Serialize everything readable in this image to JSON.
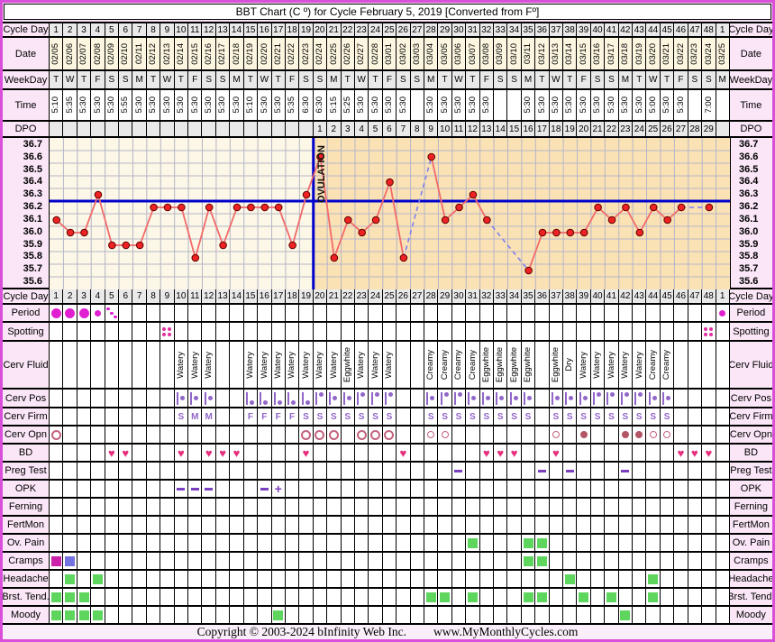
{
  "title": "BBT Chart (C º) for Cycle February 5, 2019  [Converted from Fº]",
  "footer": {
    "copyright": "Copyright © 2003-2024 bInfinity Web Inc.",
    "site": "www.MyMonthlyCycles.com"
  },
  "row_labels": {
    "cycle_day": "Cycle Day",
    "date": "Date",
    "weekday": "WeekDay",
    "time": "Time",
    "dpo": "DPO",
    "period": "Period",
    "spotting": "Spotting",
    "cerv_fluid": "Cerv Fluid",
    "cerv_pos": "Cerv Pos",
    "cerv_firm": "Cerv Firm",
    "cerv_opn": "Cerv Opn",
    "bd": "BD",
    "preg_test": "Preg Test",
    "opk": "OPK",
    "ferning": "Ferning",
    "fertmon": "FertMon",
    "ov_pain": "Ov. Pain",
    "cramps": "Cramps",
    "headache": "Headache",
    "brst_tend": "Brst. Tend.",
    "moody": "Moody"
  },
  "columns": {
    "cycle_days": [
      "1",
      "2",
      "3",
      "4",
      "5",
      "6",
      "7",
      "8",
      "9",
      "10",
      "11",
      "12",
      "13",
      "14",
      "15",
      "16",
      "17",
      "18",
      "19",
      "20",
      "21",
      "22",
      "23",
      "24",
      "25",
      "26",
      "27",
      "28",
      "29",
      "30",
      "31",
      "32",
      "33",
      "34",
      "35",
      "36",
      "37",
      "38",
      "39",
      "40",
      "41",
      "42",
      "43",
      "44",
      "45",
      "46",
      "47",
      "48",
      "1"
    ],
    "dates": [
      "02/05",
      "02/06",
      "02/07",
      "02/08",
      "02/09",
      "02/10",
      "02/11",
      "02/12",
      "02/13",
      "02/14",
      "02/15",
      "02/16",
      "02/17",
      "02/18",
      "02/19",
      "02/20",
      "02/21",
      "02/22",
      "02/23",
      "02/24",
      "02/25",
      "02/26",
      "02/27",
      "02/28",
      "03/01",
      "03/02",
      "03/03",
      "03/04",
      "03/05",
      "03/06",
      "03/07",
      "03/08",
      "03/09",
      "03/10",
      "03/11",
      "03/12",
      "03/13",
      "03/14",
      "03/15",
      "03/16",
      "03/17",
      "03/18",
      "03/19",
      "03/20",
      "03/21",
      "03/22",
      "03/23",
      "03/24",
      "03/25"
    ],
    "weekdays": [
      "T",
      "W",
      "T",
      "F",
      "S",
      "S",
      "M",
      "T",
      "W",
      "T",
      "F",
      "S",
      "S",
      "M",
      "T",
      "W",
      "T",
      "F",
      "S",
      "S",
      "M",
      "T",
      "W",
      "T",
      "F",
      "S",
      "S",
      "M",
      "T",
      "W",
      "T",
      "F",
      "S",
      "S",
      "M",
      "T",
      "W",
      "T",
      "F",
      "S",
      "S",
      "M",
      "T",
      "W",
      "T",
      "F",
      "S",
      "S",
      "M"
    ],
    "times": [
      "5:10",
      "5:35",
      "5:30",
      "5:30",
      "5:30",
      "5:55",
      "5:30",
      "5:30",
      "5:30",
      "5:30",
      "5:30",
      "5:30",
      "5:30",
      "5:30",
      "5:10",
      "5:30",
      "5:30",
      "5:35",
      "6:30",
      "6:30",
      "5:15",
      "5:25",
      "5:30",
      "5:30",
      "5:30",
      "5:30",
      "",
      "5:30",
      "5:30",
      "5:30",
      "5:30",
      "5:30",
      "",
      "",
      "5:30",
      "5:30",
      "5:30",
      "5:30",
      "5:30",
      "5:30",
      "5:30",
      "5:30",
      "5:30",
      "5:00",
      "5:30",
      "5:30",
      "",
      "7:00",
      ""
    ],
    "dpo": [
      "",
      "",
      "",
      "",
      "",
      "",
      "",
      "",
      "",
      "",
      "",
      "",
      "",
      "",
      "",
      "",
      "",
      "",
      "",
      "1",
      "2",
      "3",
      "4",
      "5",
      "6",
      "7",
      "8",
      "9",
      "10",
      "11",
      "12",
      "13",
      "14",
      "15",
      "16",
      "17",
      "18",
      "19",
      "20",
      "21",
      "22",
      "23",
      "24",
      "25",
      "26",
      "27",
      "28",
      "29",
      ""
    ]
  },
  "chart_data": {
    "type": "line",
    "title": "Basal body temperature by cycle day (°C)",
    "x_note": "x = cycle days 1-48 plus day 1 of next cycle (see columns.cycle_days)",
    "y_ticks": [
      36.7,
      36.6,
      36.5,
      36.4,
      36.3,
      36.2,
      36.1,
      36.0,
      35.9,
      35.8,
      35.7,
      35.6
    ],
    "ylim": [
      35.6,
      36.7
    ],
    "temps_c": [
      36.1,
      36.0,
      36.0,
      36.3,
      35.9,
      35.9,
      35.9,
      36.2,
      36.2,
      36.2,
      35.8,
      36.2,
      35.9,
      36.2,
      36.2,
      36.2,
      36.2,
      35.9,
      36.3,
      36.6,
      35.8,
      36.1,
      36.0,
      36.1,
      36.4,
      35.8,
      null,
      36.6,
      36.1,
      36.2,
      36.3,
      36.1,
      null,
      null,
      35.7,
      36.0,
      36.0,
      36.0,
      36.0,
      36.2,
      36.1,
      36.2,
      36.0,
      36.2,
      36.1,
      36.2,
      null,
      36.2,
      null
    ],
    "coverline": 36.25,
    "ovulation_after_day": 19,
    "annotation": "OVULATION",
    "grid": true,
    "missing_data_style": "dashed blue line between surrounding points"
  },
  "observations": {
    "period": [
      [
        1,
        "heavy"
      ],
      [
        2,
        "heavy"
      ],
      [
        3,
        "heavy"
      ],
      [
        4,
        "light"
      ],
      [
        5,
        "spotting"
      ],
      [
        49,
        "light"
      ]
    ],
    "spotting": [
      [
        9,
        "spotting"
      ],
      [
        48,
        "spotting"
      ]
    ],
    "cerv_fluid": [
      [
        10,
        "Watery"
      ],
      [
        11,
        "Watery"
      ],
      [
        12,
        "Watery"
      ],
      [
        15,
        "Watery"
      ],
      [
        16,
        "Watery"
      ],
      [
        17,
        "Watery"
      ],
      [
        18,
        "Watery"
      ],
      [
        19,
        "Watery"
      ],
      [
        20,
        "Watery"
      ],
      [
        21,
        "Watery"
      ],
      [
        22,
        "Eggwhite"
      ],
      [
        23,
        "Watery"
      ],
      [
        24,
        "Watery"
      ],
      [
        25,
        "Watery"
      ],
      [
        28,
        "Creamy"
      ],
      [
        29,
        "Creamy"
      ],
      [
        30,
        "Creamy"
      ],
      [
        31,
        "Creamy"
      ],
      [
        32,
        "Eggwhite"
      ],
      [
        33,
        "Eggwhite"
      ],
      [
        34,
        "Eggwhite"
      ],
      [
        35,
        "Eggwhite"
      ],
      [
        37,
        "Eggwhite"
      ],
      [
        38,
        "Dry"
      ],
      [
        39,
        "Watery"
      ],
      [
        40,
        "Watery"
      ],
      [
        41,
        "Watery"
      ],
      [
        42,
        "Watery"
      ],
      [
        43,
        "Watery"
      ],
      [
        44,
        "Creamy"
      ],
      [
        45,
        "Creamy"
      ]
    ],
    "cerv_pos": [
      [
        10,
        "mid"
      ],
      [
        11,
        "mid"
      ],
      [
        12,
        "mid"
      ],
      [
        15,
        "low"
      ],
      [
        16,
        "low"
      ],
      [
        17,
        "low"
      ],
      [
        18,
        "low"
      ],
      [
        19,
        "low"
      ],
      [
        20,
        "high"
      ],
      [
        21,
        "mid"
      ],
      [
        22,
        "mid"
      ],
      [
        23,
        "high"
      ],
      [
        24,
        "high"
      ],
      [
        25,
        "high"
      ],
      [
        28,
        "mid"
      ],
      [
        29,
        "high"
      ],
      [
        30,
        "high"
      ],
      [
        31,
        "mid"
      ],
      [
        32,
        "mid"
      ],
      [
        33,
        "mid"
      ],
      [
        34,
        "mid"
      ],
      [
        35,
        "mid"
      ],
      [
        37,
        "mid"
      ],
      [
        38,
        "mid"
      ],
      [
        39,
        "mid"
      ],
      [
        40,
        "high"
      ],
      [
        41,
        "high"
      ],
      [
        42,
        "high"
      ],
      [
        43,
        "high"
      ],
      [
        44,
        "mid"
      ],
      [
        45,
        "mid"
      ]
    ],
    "cerv_firm": [
      [
        10,
        "S"
      ],
      [
        11,
        "M"
      ],
      [
        12,
        "M"
      ],
      [
        15,
        "F"
      ],
      [
        16,
        "F"
      ],
      [
        17,
        "F"
      ],
      [
        18,
        "F"
      ],
      [
        19,
        "S"
      ],
      [
        20,
        "S"
      ],
      [
        21,
        "S"
      ],
      [
        22,
        "S"
      ],
      [
        23,
        "S"
      ],
      [
        24,
        "S"
      ],
      [
        25,
        "S"
      ],
      [
        28,
        "S"
      ],
      [
        29,
        "S"
      ],
      [
        30,
        "S"
      ],
      [
        31,
        "S"
      ],
      [
        32,
        "S"
      ],
      [
        33,
        "S"
      ],
      [
        34,
        "S"
      ],
      [
        35,
        "S"
      ],
      [
        37,
        "S"
      ],
      [
        38,
        "S"
      ],
      [
        39,
        "S"
      ],
      [
        40,
        "S"
      ],
      [
        41,
        "S"
      ],
      [
        42,
        "S"
      ],
      [
        43,
        "S"
      ],
      [
        44,
        "S"
      ],
      [
        45,
        "S"
      ]
    ],
    "cerv_opn": [
      [
        1,
        "open"
      ],
      [
        19,
        "open"
      ],
      [
        20,
        "open"
      ],
      [
        21,
        "open"
      ],
      [
        23,
        "open"
      ],
      [
        24,
        "open"
      ],
      [
        25,
        "open"
      ],
      [
        28,
        "slight"
      ],
      [
        29,
        "slight"
      ],
      [
        37,
        "slight"
      ],
      [
        39,
        "closed"
      ],
      [
        42,
        "closed"
      ],
      [
        43,
        "closed"
      ],
      [
        44,
        "slight"
      ],
      [
        45,
        "slight"
      ]
    ],
    "bd": [
      5,
      6,
      10,
      12,
      13,
      14,
      19,
      26,
      32,
      33,
      34,
      37,
      46,
      47,
      48
    ],
    "preg_test": [
      [
        30,
        "negative"
      ],
      [
        36,
        "negative"
      ],
      [
        38,
        "negative"
      ],
      [
        42,
        "negative"
      ]
    ],
    "opk": [
      [
        10,
        "negative"
      ],
      [
        11,
        "negative"
      ],
      [
        12,
        "negative"
      ],
      [
        16,
        "negative"
      ],
      [
        17,
        "positive"
      ]
    ],
    "ferning": [],
    "fertmon": [],
    "ov_pain": [
      31,
      35,
      36
    ],
    "cramps": [
      [
        1,
        "magenta"
      ],
      [
        2,
        "periwinkle"
      ],
      [
        35,
        "green"
      ],
      [
        36,
        "green"
      ]
    ],
    "headache": [
      2,
      4,
      38,
      44
    ],
    "brst_tend": [
      1,
      2,
      3,
      28,
      29,
      31,
      35,
      36,
      39,
      41,
      44
    ],
    "moody": [
      1,
      2,
      3,
      4,
      17,
      42
    ]
  },
  "colors": {
    "frame": "#d94fd9",
    "label_bg": "#fae6f7",
    "grey_bg": "#e9e9e9",
    "cream_bg": "#fcf6e0",
    "chart_pre_bg": "#fcf7e6",
    "chart_post_bg": "#fbe2b4",
    "chart_grid": "#b5b5c8",
    "temp_line": "#f26a6a",
    "temp_point": "#ee2222",
    "temp_point_edge": "#5a0000",
    "missing_dash": "#8080f0",
    "coverline": "#0000cc",
    "period_magenta": "#e020d0",
    "spotting_pink": "#e0309f",
    "cervix_purple": "#9166c8",
    "cervix_open_rose": "#c4637e",
    "cervix_closed_fill": "#b25566",
    "heart_pink": "#e62e7d",
    "test_purple": "#7a3fc0",
    "symptom_green": "#5ed65e",
    "cramps_magenta": "#cc22aa",
    "cramps_periwinkle": "#7373e0"
  }
}
